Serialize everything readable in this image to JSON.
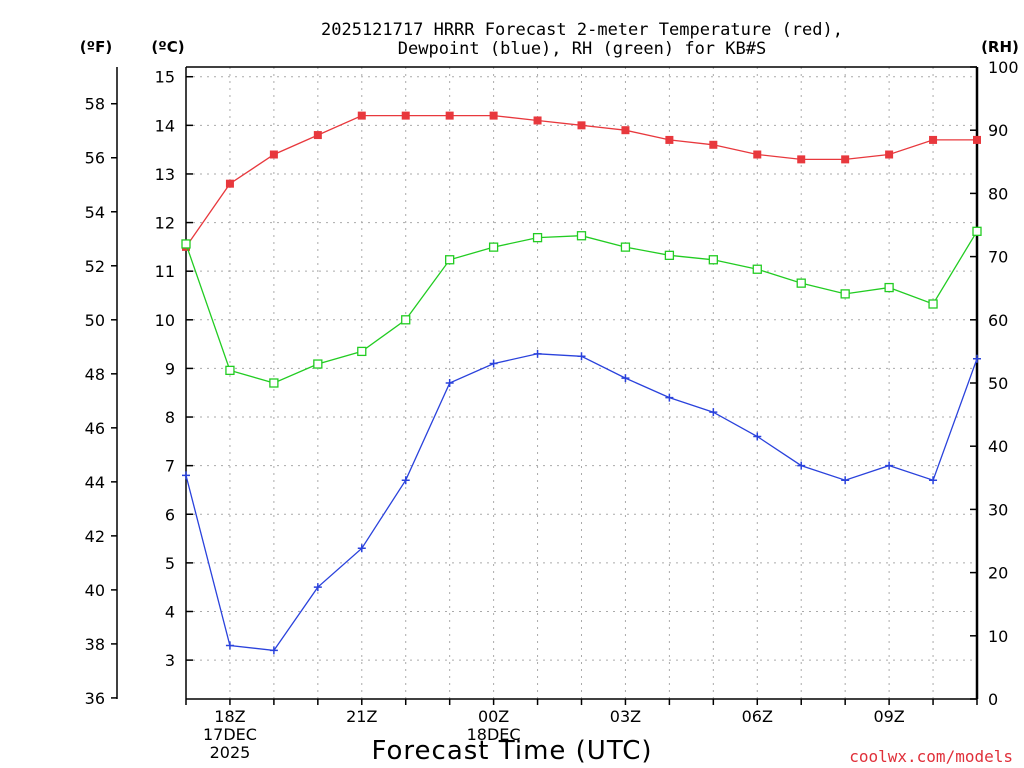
{
  "chart_data": {
    "type": "line",
    "title": "2025121717 HRRR Forecast 2-meter Temperature (red),",
    "subtitle": "Dewpoint (blue), RH (green) for KB#S",
    "xlabel": "Forecast Time (UTC)",
    "credit": "coolwx.com/models",
    "units": {
      "fahrenheit": "(ºF)",
      "celsius": "(ºC)",
      "rh": "(RH)"
    },
    "hours": [
      17,
      18,
      19,
      20,
      21,
      22,
      23,
      24,
      25,
      26,
      27,
      28,
      29,
      30,
      31,
      32,
      33,
      34,
      35
    ],
    "x_ticks": [
      {
        "hour": 18,
        "lines": [
          "18Z",
          "17DEC",
          "2025"
        ]
      },
      {
        "hour": 21,
        "lines": [
          "21Z"
        ]
      },
      {
        "hour": 24,
        "lines": [
          "00Z",
          "18DEC"
        ]
      },
      {
        "hour": 27,
        "lines": [
          "03Z"
        ]
      },
      {
        "hour": 30,
        "lines": [
          "06Z"
        ]
      },
      {
        "hour": 33,
        "lines": [
          "09Z"
        ]
      }
    ],
    "celsius_axis": {
      "range": [
        2.2,
        15.2
      ],
      "ticks": [
        "3",
        "4",
        "5",
        "6",
        "7",
        "8",
        "9",
        "10",
        "11",
        "12",
        "13",
        "14",
        "15"
      ]
    },
    "fahrenheit_axis": {
      "range": [
        35.96,
        59.36
      ],
      "ticks": [
        "36",
        "38",
        "40",
        "42",
        "44",
        "46",
        "48",
        "50",
        "52",
        "54",
        "56",
        "58"
      ]
    },
    "rh_axis": {
      "range": [
        0,
        100
      ],
      "ticks": [
        "0",
        "10",
        "20",
        "30",
        "40",
        "50",
        "60",
        "70",
        "80",
        "90",
        "100"
      ]
    },
    "series": [
      {
        "name": "Temperature",
        "axis": "celsius",
        "color": "#e8383d",
        "marker": "filled-square",
        "values": [
          11.5,
          12.8,
          13.4,
          13.8,
          14.2,
          14.2,
          14.2,
          14.2,
          14.1,
          14.0,
          13.9,
          13.7,
          13.6,
          13.4,
          13.3,
          13.3,
          13.4,
          13.7,
          13.7
        ]
      },
      {
        "name": "Dewpoint",
        "axis": "celsius",
        "color": "#2a42dc",
        "marker": "plus",
        "values": [
          6.8,
          3.3,
          3.2,
          4.5,
          5.3,
          6.7,
          8.7,
          9.1,
          9.3,
          9.25,
          8.8,
          8.4,
          8.1,
          7.6,
          7.0,
          6.7,
          7.0,
          6.7,
          9.2
        ]
      },
      {
        "name": "RH",
        "axis": "rh",
        "color": "#22cc22",
        "marker": "open-square",
        "values": [
          72,
          52,
          50,
          53,
          55,
          60,
          69.5,
          71.5,
          73,
          73.3,
          71.5,
          70.2,
          69.5,
          68,
          65.8,
          64.1,
          65.1,
          62.5,
          74
        ]
      }
    ]
  }
}
